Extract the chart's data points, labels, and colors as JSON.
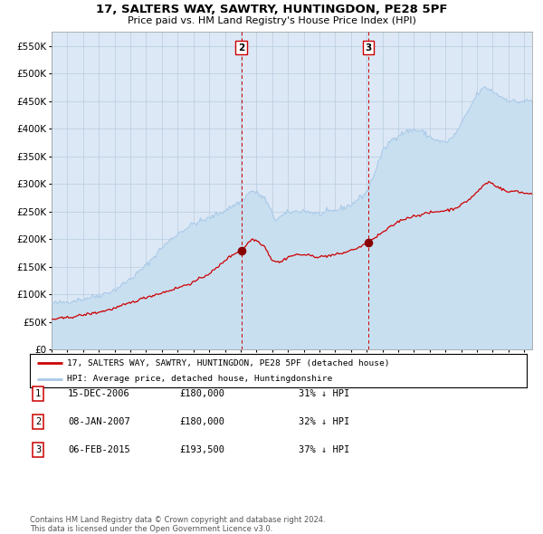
{
  "title": "17, SALTERS WAY, SAWTRY, HUNTINGDON, PE28 5PF",
  "subtitle": "Price paid vs. HM Land Registry's House Price Index (HPI)",
  "legend_property": "17, SALTERS WAY, SAWTRY, HUNTINGDON, PE28 5PF (detached house)",
  "legend_hpi": "HPI: Average price, detached house, Huntingdonshire",
  "footer_line1": "Contains HM Land Registry data © Crown copyright and database right 2024.",
  "footer_line2": "This data is licensed under the Open Government Licence v3.0.",
  "table_rows": [
    [
      "1",
      "15-DEC-2006",
      "£180,000",
      "31% ↓ HPI"
    ],
    [
      "2",
      "08-JAN-2007",
      "£180,000",
      "32% ↓ HPI"
    ],
    [
      "3",
      "06-FEB-2015",
      "£193,500",
      "37% ↓ HPI"
    ]
  ],
  "vline2_x": 2007.04,
  "vline3_x": 2015.1,
  "marker2_x": 2007.04,
  "marker2_y": 180000,
  "marker3_x": 2015.1,
  "marker3_y": 193500,
  "ylim": [
    0,
    575000
  ],
  "xlim_start": 1995.0,
  "xlim_end": 2025.5,
  "plot_bg_color": "#dce8f5",
  "grid_color": "#b8cce0",
  "hpi_color": "#a8c8e8",
  "hpi_fill_color": "#c8dff0",
  "property_color": "#cc0000",
  "vline_color": "#cc0000",
  "marker_color": "#880000"
}
